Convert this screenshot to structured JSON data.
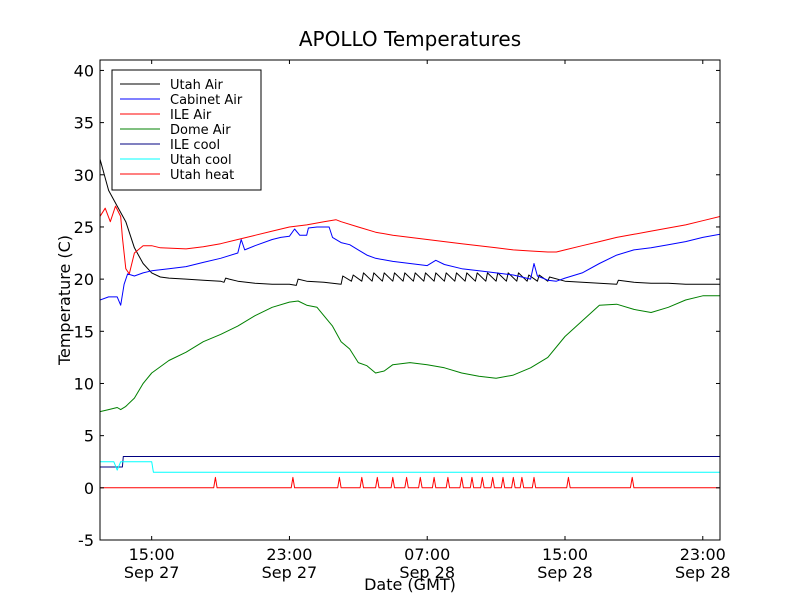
{
  "chart_data": {
    "type": "line",
    "title": "APOLLO Temperatures",
    "xlabel": "Date (GMT)",
    "ylabel": "Temperature (C)",
    "xlim": [
      0,
      36
    ],
    "ylim": [
      -5,
      41
    ],
    "x_ticks": [
      {
        "x": 3,
        "time": "15:00",
        "date": "Sep 27"
      },
      {
        "x": 11,
        "time": "23:00",
        "date": "Sep 27"
      },
      {
        "x": 19,
        "time": "07:00",
        "date": "Sep 28"
      },
      {
        "x": 27,
        "time": "15:00",
        "date": "Sep 28"
      },
      {
        "x": 35,
        "time": "23:00",
        "date": "Sep 28"
      }
    ],
    "y_ticks": [
      -5,
      0,
      5,
      10,
      15,
      20,
      25,
      30,
      35,
      40
    ],
    "legend_position": "upper-left",
    "series": [
      {
        "name": "Utah Air",
        "color": "#000000",
        "points": [
          [
            0,
            31.5
          ],
          [
            0.5,
            28.5
          ],
          [
            1,
            27
          ],
          [
            1.5,
            25.5
          ],
          [
            2,
            23
          ],
          [
            2.5,
            21.5
          ],
          [
            3,
            20.6
          ],
          [
            3.5,
            20.2
          ],
          [
            4,
            20.1
          ],
          [
            5,
            20
          ],
          [
            6,
            19.9
          ],
          [
            7,
            19.8
          ],
          [
            7.2,
            19.7
          ],
          [
            7.3,
            20.1
          ],
          [
            7.5,
            20
          ],
          [
            8,
            19.8
          ],
          [
            9,
            19.6
          ],
          [
            10,
            19.5
          ],
          [
            11,
            19.5
          ],
          [
            11.4,
            19.4
          ],
          [
            11.5,
            20
          ],
          [
            12,
            19.8
          ],
          [
            13,
            19.7
          ],
          [
            14,
            19.5
          ],
          [
            14.1,
            20.3
          ],
          [
            14.6,
            19.8
          ],
          [
            14.7,
            20.4
          ],
          [
            15.2,
            19.8
          ],
          [
            15.3,
            20.6
          ],
          [
            15.8,
            19.8
          ],
          [
            15.9,
            20.6
          ],
          [
            16.4,
            19.8
          ],
          [
            16.5,
            20.6
          ],
          [
            17,
            19.8
          ],
          [
            17.1,
            20.6
          ],
          [
            17.6,
            19.8
          ],
          [
            17.7,
            20.6
          ],
          [
            18.2,
            19.8
          ],
          [
            18.3,
            20.6
          ],
          [
            18.8,
            19.8
          ],
          [
            18.9,
            20.6
          ],
          [
            19.4,
            19.8
          ],
          [
            19.5,
            20.6
          ],
          [
            20,
            19.8
          ],
          [
            20.1,
            20.6
          ],
          [
            20.6,
            19.8
          ],
          [
            20.7,
            20.6
          ],
          [
            21.2,
            19.8
          ],
          [
            21.3,
            20.6
          ],
          [
            21.8,
            19.8
          ],
          [
            21.9,
            20.6
          ],
          [
            22.4,
            19.8
          ],
          [
            22.5,
            20.6
          ],
          [
            23,
            19.8
          ],
          [
            23.1,
            20.6
          ],
          [
            23.6,
            19.8
          ],
          [
            23.7,
            20.6
          ],
          [
            24.2,
            19.8
          ],
          [
            24.3,
            20.6
          ],
          [
            24.8,
            19.8
          ],
          [
            24.9,
            20.4
          ],
          [
            25.4,
            19.8
          ],
          [
            25.5,
            20.4
          ],
          [
            26,
            19.8
          ],
          [
            26.1,
            20.2
          ],
          [
            27,
            19.8
          ],
          [
            28,
            19.7
          ],
          [
            29,
            19.6
          ],
          [
            30,
            19.5
          ],
          [
            30.1,
            19.9
          ],
          [
            31,
            19.7
          ],
          [
            32,
            19.6
          ],
          [
            33,
            19.6
          ],
          [
            34,
            19.5
          ],
          [
            35,
            19.5
          ],
          [
            36,
            19.5
          ]
        ]
      },
      {
        "name": "Cabinet Air",
        "color": "#0000ff",
        "points": [
          [
            0,
            18
          ],
          [
            0.5,
            18.3
          ],
          [
            1,
            18.3
          ],
          [
            1.2,
            17.5
          ],
          [
            1.4,
            19.5
          ],
          [
            1.6,
            20.5
          ],
          [
            2,
            20.3
          ],
          [
            2.5,
            20.6
          ],
          [
            3,
            20.8
          ],
          [
            4,
            21
          ],
          [
            5,
            21.2
          ],
          [
            6,
            21.6
          ],
          [
            7,
            22
          ],
          [
            8,
            22.5
          ],
          [
            8.2,
            23.8
          ],
          [
            8.4,
            22.8
          ],
          [
            9,
            23.2
          ],
          [
            10,
            23.8
          ],
          [
            10.5,
            24
          ],
          [
            11,
            24.1
          ],
          [
            11.3,
            24.8
          ],
          [
            11.6,
            24.2
          ],
          [
            12,
            24.2
          ],
          [
            12.1,
            24.9
          ],
          [
            12.6,
            25
          ],
          [
            13.3,
            25
          ],
          [
            13.5,
            24
          ],
          [
            14,
            23.5
          ],
          [
            14.5,
            23.3
          ],
          [
            15,
            22.8
          ],
          [
            15.5,
            22.3
          ],
          [
            16,
            22
          ],
          [
            17,
            21.7
          ],
          [
            18,
            21.5
          ],
          [
            19,
            21.3
          ],
          [
            19.5,
            21.8
          ],
          [
            20,
            21.4
          ],
          [
            21,
            21
          ],
          [
            22,
            20.8
          ],
          [
            23,
            20.6
          ],
          [
            24,
            20.4
          ],
          [
            25,
            20
          ],
          [
            25.2,
            21.5
          ],
          [
            25.4,
            20.3
          ],
          [
            26,
            19.9
          ],
          [
            26.5,
            19.8
          ],
          [
            27,
            20.1
          ],
          [
            28,
            20.6
          ],
          [
            29,
            21.5
          ],
          [
            30,
            22.3
          ],
          [
            31,
            22.8
          ],
          [
            32,
            23
          ],
          [
            33,
            23.3
          ],
          [
            34,
            23.6
          ],
          [
            35,
            24
          ],
          [
            36,
            24.3
          ]
        ]
      },
      {
        "name": "ILE Air",
        "color": "#ff0000",
        "points": [
          [
            0,
            26
          ],
          [
            0.3,
            26.8
          ],
          [
            0.6,
            25.5
          ],
          [
            0.9,
            27
          ],
          [
            1.2,
            26
          ],
          [
            1.3,
            24
          ],
          [
            1.5,
            21
          ],
          [
            1.7,
            20.5
          ],
          [
            2,
            22.5
          ],
          [
            2.5,
            23.2
          ],
          [
            3,
            23.2
          ],
          [
            3.5,
            23
          ],
          [
            5,
            22.9
          ],
          [
            6,
            23.1
          ],
          [
            7,
            23.4
          ],
          [
            8,
            23.8
          ],
          [
            9,
            24.2
          ],
          [
            10,
            24.6
          ],
          [
            11,
            25
          ],
          [
            12,
            25.2
          ],
          [
            13,
            25.5
          ],
          [
            13.7,
            25.7
          ],
          [
            14,
            25.5
          ],
          [
            15,
            25
          ],
          [
            16,
            24.5
          ],
          [
            17,
            24.2
          ],
          [
            18,
            24
          ],
          [
            19,
            23.8
          ],
          [
            20,
            23.6
          ],
          [
            21,
            23.4
          ],
          [
            22,
            23.2
          ],
          [
            23,
            23
          ],
          [
            24,
            22.8
          ],
          [
            25,
            22.7
          ],
          [
            26,
            22.6
          ],
          [
            26.5,
            22.6
          ],
          [
            27,
            22.8
          ],
          [
            28,
            23.2
          ],
          [
            29,
            23.6
          ],
          [
            30,
            24
          ],
          [
            31,
            24.3
          ],
          [
            32,
            24.6
          ],
          [
            33,
            24.9
          ],
          [
            34,
            25.2
          ],
          [
            35,
            25.6
          ],
          [
            36,
            26
          ]
        ]
      },
      {
        "name": "Dome Air",
        "color": "#008000",
        "points": [
          [
            0,
            7.3
          ],
          [
            0.5,
            7.5
          ],
          [
            1,
            7.7
          ],
          [
            1.2,
            7.5
          ],
          [
            1.5,
            7.8
          ],
          [
            2,
            8.6
          ],
          [
            2.5,
            10
          ],
          [
            3,
            11
          ],
          [
            4,
            12.2
          ],
          [
            5,
            13
          ],
          [
            6,
            14
          ],
          [
            7,
            14.7
          ],
          [
            8,
            15.5
          ],
          [
            9,
            16.5
          ],
          [
            10,
            17.3
          ],
          [
            11,
            17.8
          ],
          [
            11.5,
            17.9
          ],
          [
            12,
            17.5
          ],
          [
            12.6,
            17.3
          ],
          [
            13,
            16.5
          ],
          [
            13.5,
            15.5
          ],
          [
            14,
            14
          ],
          [
            14.5,
            13.3
          ],
          [
            15,
            12
          ],
          [
            15.5,
            11.7
          ],
          [
            16,
            11
          ],
          [
            16.5,
            11.2
          ],
          [
            17,
            11.8
          ],
          [
            18,
            12
          ],
          [
            19,
            11.8
          ],
          [
            20,
            11.5
          ],
          [
            21,
            11
          ],
          [
            22,
            10.7
          ],
          [
            23,
            10.5
          ],
          [
            24,
            10.8
          ],
          [
            25,
            11.5
          ],
          [
            26,
            12.5
          ],
          [
            27,
            14.5
          ],
          [
            28,
            16
          ],
          [
            29,
            17.5
          ],
          [
            30,
            17.6
          ],
          [
            31,
            17.1
          ],
          [
            32,
            16.8
          ],
          [
            33,
            17.3
          ],
          [
            34,
            18
          ],
          [
            35,
            18.4
          ],
          [
            36,
            18.4
          ]
        ]
      },
      {
        "name": "ILE cool",
        "color": "#000080",
        "points": [
          [
            0,
            2
          ],
          [
            1.3,
            2
          ],
          [
            1.35,
            3
          ],
          [
            36,
            3
          ]
        ]
      },
      {
        "name": "Utah cool",
        "color": "#00ffff",
        "points": [
          [
            0,
            2.5
          ],
          [
            0.8,
            2.5
          ],
          [
            1,
            1.7
          ],
          [
            1.2,
            2.5
          ],
          [
            3,
            2.5
          ],
          [
            3.1,
            1.5
          ],
          [
            36,
            1.5
          ]
        ]
      },
      {
        "name": "Utah heat",
        "color": "#ff0000",
        "points": [
          [
            0,
            0
          ],
          [
            6.6,
            0
          ],
          [
            6.7,
            1
          ],
          [
            6.8,
            0
          ],
          [
            11.1,
            0
          ],
          [
            11.2,
            1
          ],
          [
            11.3,
            0
          ],
          [
            13.8,
            0
          ],
          [
            13.9,
            1
          ],
          [
            14,
            0
          ],
          [
            15.1,
            0
          ],
          [
            15.2,
            1
          ],
          [
            15.3,
            0
          ],
          [
            16,
            0
          ],
          [
            16.1,
            1
          ],
          [
            16.2,
            0
          ],
          [
            16.9,
            0
          ],
          [
            17,
            1
          ],
          [
            17.1,
            0
          ],
          [
            17.7,
            0
          ],
          [
            17.8,
            1
          ],
          [
            17.9,
            0
          ],
          [
            18.5,
            0
          ],
          [
            18.6,
            1
          ],
          [
            18.7,
            0
          ],
          [
            19.3,
            0
          ],
          [
            19.4,
            1
          ],
          [
            19.5,
            0
          ],
          [
            20.1,
            0
          ],
          [
            20.2,
            1
          ],
          [
            20.3,
            0
          ],
          [
            20.9,
            0
          ],
          [
            21,
            1
          ],
          [
            21.1,
            0
          ],
          [
            21.5,
            0
          ],
          [
            21.6,
            1
          ],
          [
            21.7,
            0
          ],
          [
            22.1,
            0
          ],
          [
            22.2,
            1
          ],
          [
            22.3,
            0
          ],
          [
            22.7,
            0
          ],
          [
            22.8,
            1
          ],
          [
            22.9,
            0
          ],
          [
            23.3,
            0
          ],
          [
            23.4,
            1
          ],
          [
            23.5,
            0
          ],
          [
            23.9,
            0
          ],
          [
            24,
            1
          ],
          [
            24.1,
            0
          ],
          [
            24.4,
            0
          ],
          [
            24.5,
            1
          ],
          [
            24.6,
            0
          ],
          [
            25.1,
            0
          ],
          [
            25.2,
            1
          ],
          [
            25.3,
            0
          ],
          [
            27.1,
            0
          ],
          [
            27.2,
            1
          ],
          [
            27.3,
            0
          ],
          [
            30.8,
            0
          ],
          [
            30.9,
            1
          ],
          [
            31,
            0
          ],
          [
            36,
            0
          ]
        ]
      }
    ]
  }
}
